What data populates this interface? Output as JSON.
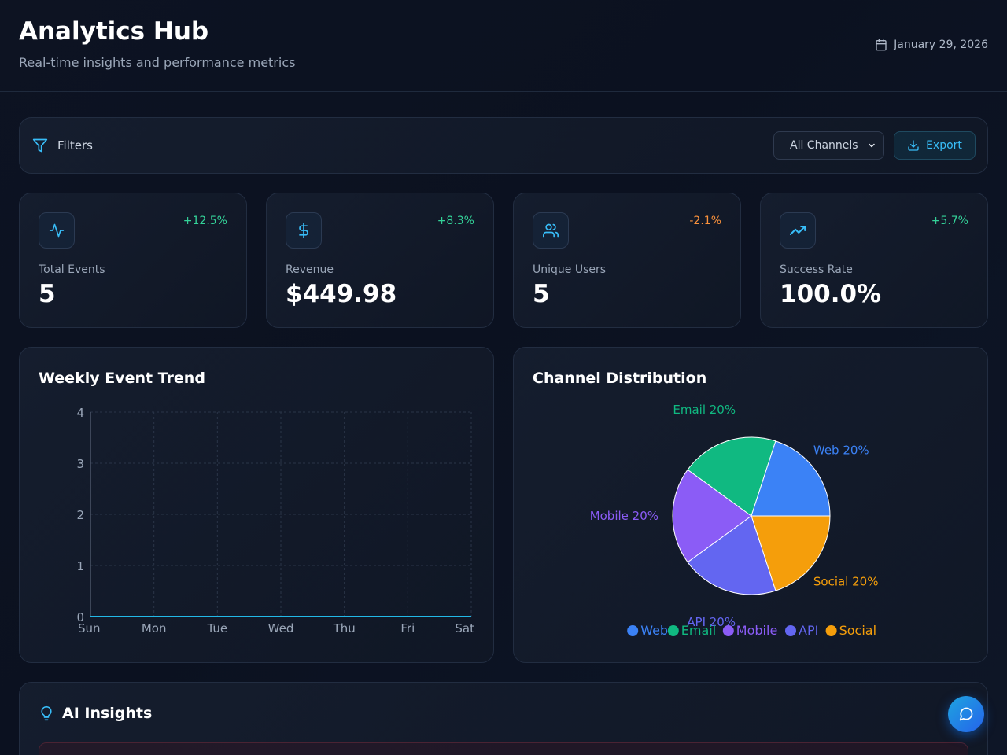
{
  "header": {
    "title": "Analytics Hub",
    "subtitle": "Real-time insights and performance metrics",
    "date": "January 29, 2026"
  },
  "filters": {
    "label": "Filters",
    "channel_select": "All Channels",
    "export_label": "Export"
  },
  "stats": [
    {
      "label": "Total Events",
      "value": "5",
      "change": "+12.5%",
      "icon": "activity-icon",
      "trend": "up"
    },
    {
      "label": "Revenue",
      "value": "$449.98",
      "change": "+8.3%",
      "icon": "dollar-icon",
      "trend": "up"
    },
    {
      "label": "Unique Users",
      "value": "5",
      "change": "-2.1%",
      "icon": "users-icon",
      "trend": "down"
    },
    {
      "label": "Success Rate",
      "value": "100.0%",
      "change": "+5.7%",
      "icon": "trending-up-icon",
      "trend": "up"
    }
  ],
  "colors": {
    "accent": "#38bdf8",
    "positive": "#34d399",
    "negative": "#fb923c",
    "web": "#3b82f6",
    "email": "#10b981",
    "mobile": "#8b5cf6",
    "api": "#6366f1",
    "social": "#f59e0b"
  },
  "trend_panel": {
    "title": "Weekly Event Trend"
  },
  "distribution_panel": {
    "title": "Channel Distribution"
  },
  "insights": {
    "title": "AI Insights"
  },
  "chart_data": [
    {
      "type": "line",
      "title": "Weekly Event Trend",
      "x": [
        "Sun",
        "Mon",
        "Tue",
        "Wed",
        "Thu",
        "Fri",
        "Sat"
      ],
      "series": [
        {
          "values": [
            0,
            0,
            0,
            0,
            0,
            0,
            0
          ]
        }
      ],
      "ylim": [
        0,
        4
      ],
      "yticks": [
        0,
        1,
        2,
        3,
        4
      ],
      "grid": true
    },
    {
      "type": "pie",
      "title": "Channel Distribution",
      "slices": [
        {
          "label": "Web",
          "value": 20,
          "text": "Web 20%"
        },
        {
          "label": "Social",
          "value": 20,
          "text": "Social 20%"
        },
        {
          "label": "API",
          "value": 20,
          "text": "API 20%"
        },
        {
          "label": "Mobile",
          "value": 20,
          "text": "Mobile 20%"
        },
        {
          "label": "Email",
          "value": 20,
          "text": "Email 20%"
        }
      ],
      "legend": [
        "Web",
        "Email",
        "Mobile",
        "API",
        "Social"
      ],
      "legend_position": "bottom"
    }
  ]
}
